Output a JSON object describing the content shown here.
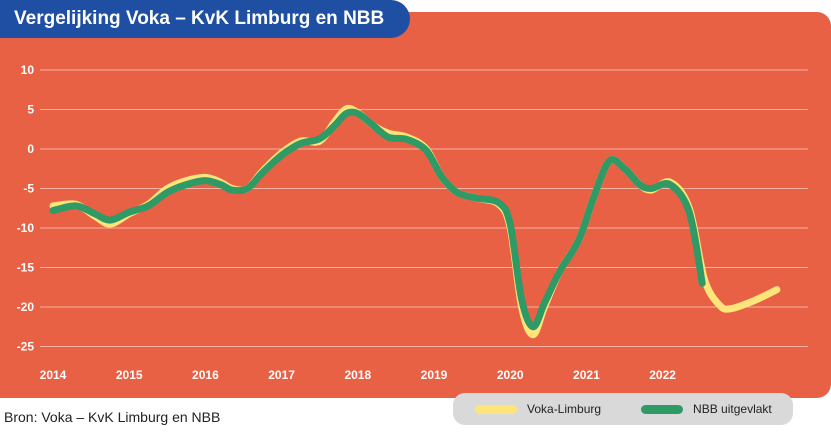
{
  "title": "Vergelijking Voka – KvK Limburg en NBB",
  "source": "Bron: Voka – KvK Limburg en NBB",
  "colors": {
    "panel": "#e96145",
    "title_bg": "#1f4fa3",
    "voka": "#fde57a",
    "nbb": "#2f9a66",
    "grid": "#f3b2a2",
    "legend_bg": "#d9d9d9"
  },
  "chart_data": {
    "type": "line",
    "x_ticks": [
      "2014",
      "2015",
      "2016",
      "2017",
      "2018",
      "2019",
      "2020",
      "2021",
      "2022"
    ],
    "y_ticks": [
      "10",
      "5",
      "0",
      "-5",
      "-10",
      "-15",
      "-20",
      "-25"
    ],
    "ylim": [
      -25,
      10
    ],
    "xlim": [
      2014,
      2023.6
    ],
    "grid": "horizontal",
    "legend_position": "bottom-right",
    "series": [
      {
        "name": "Voka-Limburg",
        "color": "#fde57a",
        "points": [
          [
            2014.0,
            -7.2
          ],
          [
            2014.3,
            -7.0
          ],
          [
            2014.55,
            -8.5
          ],
          [
            2014.75,
            -9.5
          ],
          [
            2015.0,
            -8.2
          ],
          [
            2015.25,
            -7.0
          ],
          [
            2015.5,
            -5.0
          ],
          [
            2015.75,
            -4.0
          ],
          [
            2016.0,
            -3.6
          ],
          [
            2016.2,
            -4.2
          ],
          [
            2016.35,
            -5.0
          ],
          [
            2016.55,
            -5.0
          ],
          [
            2016.75,
            -2.8
          ],
          [
            2017.0,
            -0.5
          ],
          [
            2017.25,
            1.0
          ],
          [
            2017.5,
            1.0
          ],
          [
            2017.7,
            3.5
          ],
          [
            2017.85,
            5.1
          ],
          [
            2018.0,
            4.6
          ],
          [
            2018.2,
            3.0
          ],
          [
            2018.4,
            2.0
          ],
          [
            2018.65,
            1.5
          ],
          [
            2018.9,
            0.0
          ],
          [
            2019.1,
            -3.5
          ],
          [
            2019.3,
            -5.5
          ],
          [
            2019.55,
            -6.2
          ],
          [
            2019.85,
            -7.0
          ],
          [
            2020.0,
            -10.0
          ],
          [
            2020.15,
            -20.0
          ],
          [
            2020.3,
            -23.5
          ],
          [
            2020.45,
            -20.0
          ],
          [
            2020.65,
            -15.5
          ],
          [
            2020.9,
            -11.5
          ],
          [
            2021.1,
            -6.0
          ],
          [
            2021.3,
            -1.5
          ],
          [
            2021.5,
            -2.5
          ],
          [
            2021.7,
            -4.5
          ],
          [
            2021.85,
            -5.2
          ],
          [
            2022.1,
            -4.2
          ],
          [
            2022.35,
            -7.5
          ],
          [
            2022.55,
            -16.5
          ],
          [
            2022.75,
            -19.8
          ],
          [
            2022.9,
            -20.2
          ],
          [
            2023.2,
            -19.2
          ],
          [
            2023.5,
            -17.8
          ]
        ]
      },
      {
        "name": "NBB uitgevlakt",
        "color": "#2f9a66",
        "points": [
          [
            2014.0,
            -7.8
          ],
          [
            2014.3,
            -7.2
          ],
          [
            2014.55,
            -8.2
          ],
          [
            2014.75,
            -9.0
          ],
          [
            2015.0,
            -8.0
          ],
          [
            2015.25,
            -7.2
          ],
          [
            2015.5,
            -5.5
          ],
          [
            2015.75,
            -4.5
          ],
          [
            2016.0,
            -4.0
          ],
          [
            2016.2,
            -4.5
          ],
          [
            2016.35,
            -5.2
          ],
          [
            2016.55,
            -5.0
          ],
          [
            2016.75,
            -3.0
          ],
          [
            2017.0,
            -0.8
          ],
          [
            2017.25,
            0.7
          ],
          [
            2017.5,
            1.3
          ],
          [
            2017.7,
            3.0
          ],
          [
            2017.85,
            4.5
          ],
          [
            2018.0,
            4.5
          ],
          [
            2018.2,
            3.0
          ],
          [
            2018.4,
            1.5
          ],
          [
            2018.65,
            1.2
          ],
          [
            2018.9,
            -0.2
          ],
          [
            2019.1,
            -3.5
          ],
          [
            2019.3,
            -5.5
          ],
          [
            2019.55,
            -6.2
          ],
          [
            2019.85,
            -6.8
          ],
          [
            2020.0,
            -9.5
          ],
          [
            2020.15,
            -19.0
          ],
          [
            2020.3,
            -22.5
          ],
          [
            2020.45,
            -19.5
          ],
          [
            2020.65,
            -15.5
          ],
          [
            2020.9,
            -11.5
          ],
          [
            2021.1,
            -6.0
          ],
          [
            2021.3,
            -1.5
          ],
          [
            2021.5,
            -2.5
          ],
          [
            2021.7,
            -4.5
          ],
          [
            2021.85,
            -5.0
          ],
          [
            2022.1,
            -4.5
          ],
          [
            2022.35,
            -8.0
          ],
          [
            2022.52,
            -17.0
          ]
        ]
      }
    ]
  }
}
